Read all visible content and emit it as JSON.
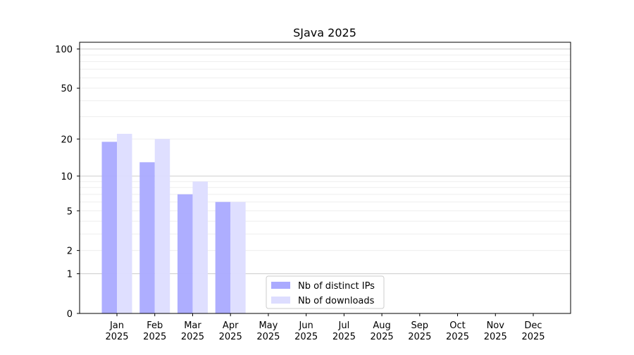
{
  "chart_data": {
    "type": "bar",
    "title": "SJava 2025",
    "xlabel": "",
    "ylabel": "",
    "yscale": "log(1+y)",
    "ylim": [
      0,
      110
    ],
    "y_ticks": [
      0,
      1,
      2,
      5,
      10,
      20,
      50,
      100
    ],
    "grid": true,
    "legend_position": "bottom-center",
    "categories": [
      "Jan\n2025",
      "Feb\n2025",
      "Mar\n2025",
      "Apr\n2025",
      "May\n2025",
      "Jun\n2025",
      "Jul\n2025",
      "Aug\n2025",
      "Sep\n2025",
      "Oct\n2025",
      "Nov\n2025",
      "Dec\n2025"
    ],
    "series": [
      {
        "name": "Nb of distinct IPs",
        "color": "#aaaaff",
        "values": [
          19,
          13,
          7,
          6,
          0,
          0,
          0,
          0,
          0,
          0,
          0,
          0
        ]
      },
      {
        "name": "Nb of downloads",
        "color": "#ddddff",
        "values": [
          22,
          20,
          9,
          6,
          0,
          0,
          0,
          0,
          0,
          0,
          0,
          0
        ]
      }
    ]
  }
}
